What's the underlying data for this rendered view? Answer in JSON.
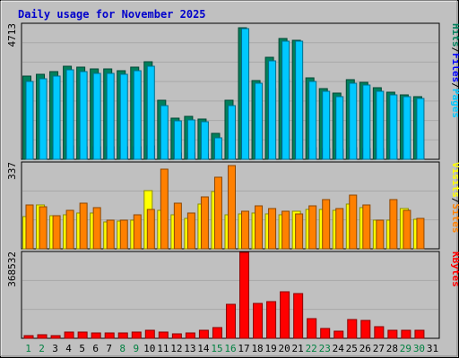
{
  "colors": {
    "background": "#c0c0c0",
    "title": "#0000cc",
    "hits": "#00805c",
    "files": "#0000ff",
    "pages": "#00c8ff",
    "visits": "#ffff00",
    "sites": "#ff8000",
    "kbytes": "#ff0000",
    "weekend": "#008040",
    "weekday": "#000000"
  },
  "chart_data": {
    "type": "bar",
    "title": "Daily usage for November 2025",
    "categories": [
      "1",
      "2",
      "3",
      "4",
      "5",
      "6",
      "7",
      "8",
      "9",
      "10",
      "11",
      "12",
      "13",
      "14",
      "15",
      "16",
      "17",
      "18",
      "19",
      "20",
      "21",
      "22",
      "23",
      "24",
      "25",
      "26",
      "27",
      "28",
      "29",
      "30",
      "31"
    ],
    "weekend_days": [
      "1",
      "2",
      "8",
      "9",
      "15",
      "16",
      "22",
      "23",
      "29",
      "30"
    ],
    "panels": [
      {
        "name": "top",
        "ymax": 4713,
        "ymax_label": "4713",
        "side_label": [
          {
            "text": "Hits",
            "color_key": "hits"
          },
          {
            "text": "/",
            "color_key": "weekday"
          },
          {
            "text": "Files",
            "color_key": "files"
          },
          {
            "text": "/",
            "color_key": "weekday"
          },
          {
            "text": "Pages",
            "color_key": "pages"
          }
        ],
        "series": [
          {
            "name": "Hits",
            "color_key": "hits",
            "values": [
              2900,
              2950,
              3050,
              3250,
              3200,
              3150,
              3150,
              3100,
              3200,
              3400,
              2050,
              1450,
              1500,
              1420,
              890,
              2050,
              4600,
              2750,
              3560,
              4200,
              4150,
              2840,
              2480,
              2300,
              2770,
              2690,
              2500,
              2350,
              2260,
              2180,
              0
            ]
          },
          {
            "name": "Files",
            "color_key": "files",
            "values": [
              420,
              420,
              430,
              460,
              450,
              440,
              440,
              430,
              440,
              470,
              300,
              210,
              220,
              200,
              130,
              300,
              3400,
              1950,
              2470,
              2790,
              2760,
              410,
              360,
              330,
              400,
              390,
              360,
              340,
              320,
              310,
              0
            ]
          },
          {
            "name": "Pages",
            "color_key": "pages",
            "values": [
              2720,
              2820,
              2900,
              3130,
              3060,
              3000,
              3000,
              2960,
              3080,
              3250,
              1880,
              1330,
              1380,
              1300,
              760,
              1870,
              4560,
              2640,
              3430,
              4120,
              4120,
              2700,
              2360,
              2180,
              2640,
              2580,
              2370,
              2240,
              2170,
              2110,
              0
            ]
          }
        ]
      },
      {
        "name": "middle",
        "ymax": 337,
        "ymax_label": "337",
        "side_label": [
          {
            "text": "Visits",
            "color_key": "visits"
          },
          {
            "text": "/",
            "color_key": "weekday"
          },
          {
            "text": "Sites",
            "color_key": "sites"
          }
        ],
        "series": [
          {
            "name": "Visits",
            "color_key": "visits",
            "values": [
              128,
              173,
              130,
              135,
              140,
              140,
              107,
              108,
              113,
              227,
              152,
              132,
              118,
              177,
              223,
              133,
              137,
              140,
              138,
              133,
              146,
              153,
              154,
              150,
              176,
              162,
              113,
              113,
              158,
              115,
              0
            ]
          },
          {
            "name": "Sites",
            "color_key": "sites",
            "values": [
              173,
              164,
              130,
              152,
              180,
              161,
              114,
              114,
              132,
              155,
              311,
              179,
              140,
              203,
              280,
              326,
              149,
              168,
              157,
              149,
              138,
              170,
              193,
              159,
              210,
              173,
              112,
              193,
              150,
              119,
              0
            ]
          }
        ]
      },
      {
        "name": "bottom",
        "ymax": 368532,
        "ymax_label": "368532",
        "side_label": [
          {
            "text": "KBytes",
            "color_key": "kbytes"
          }
        ],
        "series": [
          {
            "name": "KBytes",
            "color_key": "kbytes",
            "values": [
              10000,
              14000,
              10000,
              28000,
              26000,
              22000,
              22000,
              22000,
              28000,
              36000,
              26000,
              20000,
              24000,
              36000,
              46000,
              145000,
              368000,
              148000,
              158000,
              200000,
              192000,
              86000,
              42000,
              30000,
              82000,
              76000,
              50000,
              36000,
              36000,
              36000,
              0
            ]
          }
        ]
      }
    ]
  }
}
